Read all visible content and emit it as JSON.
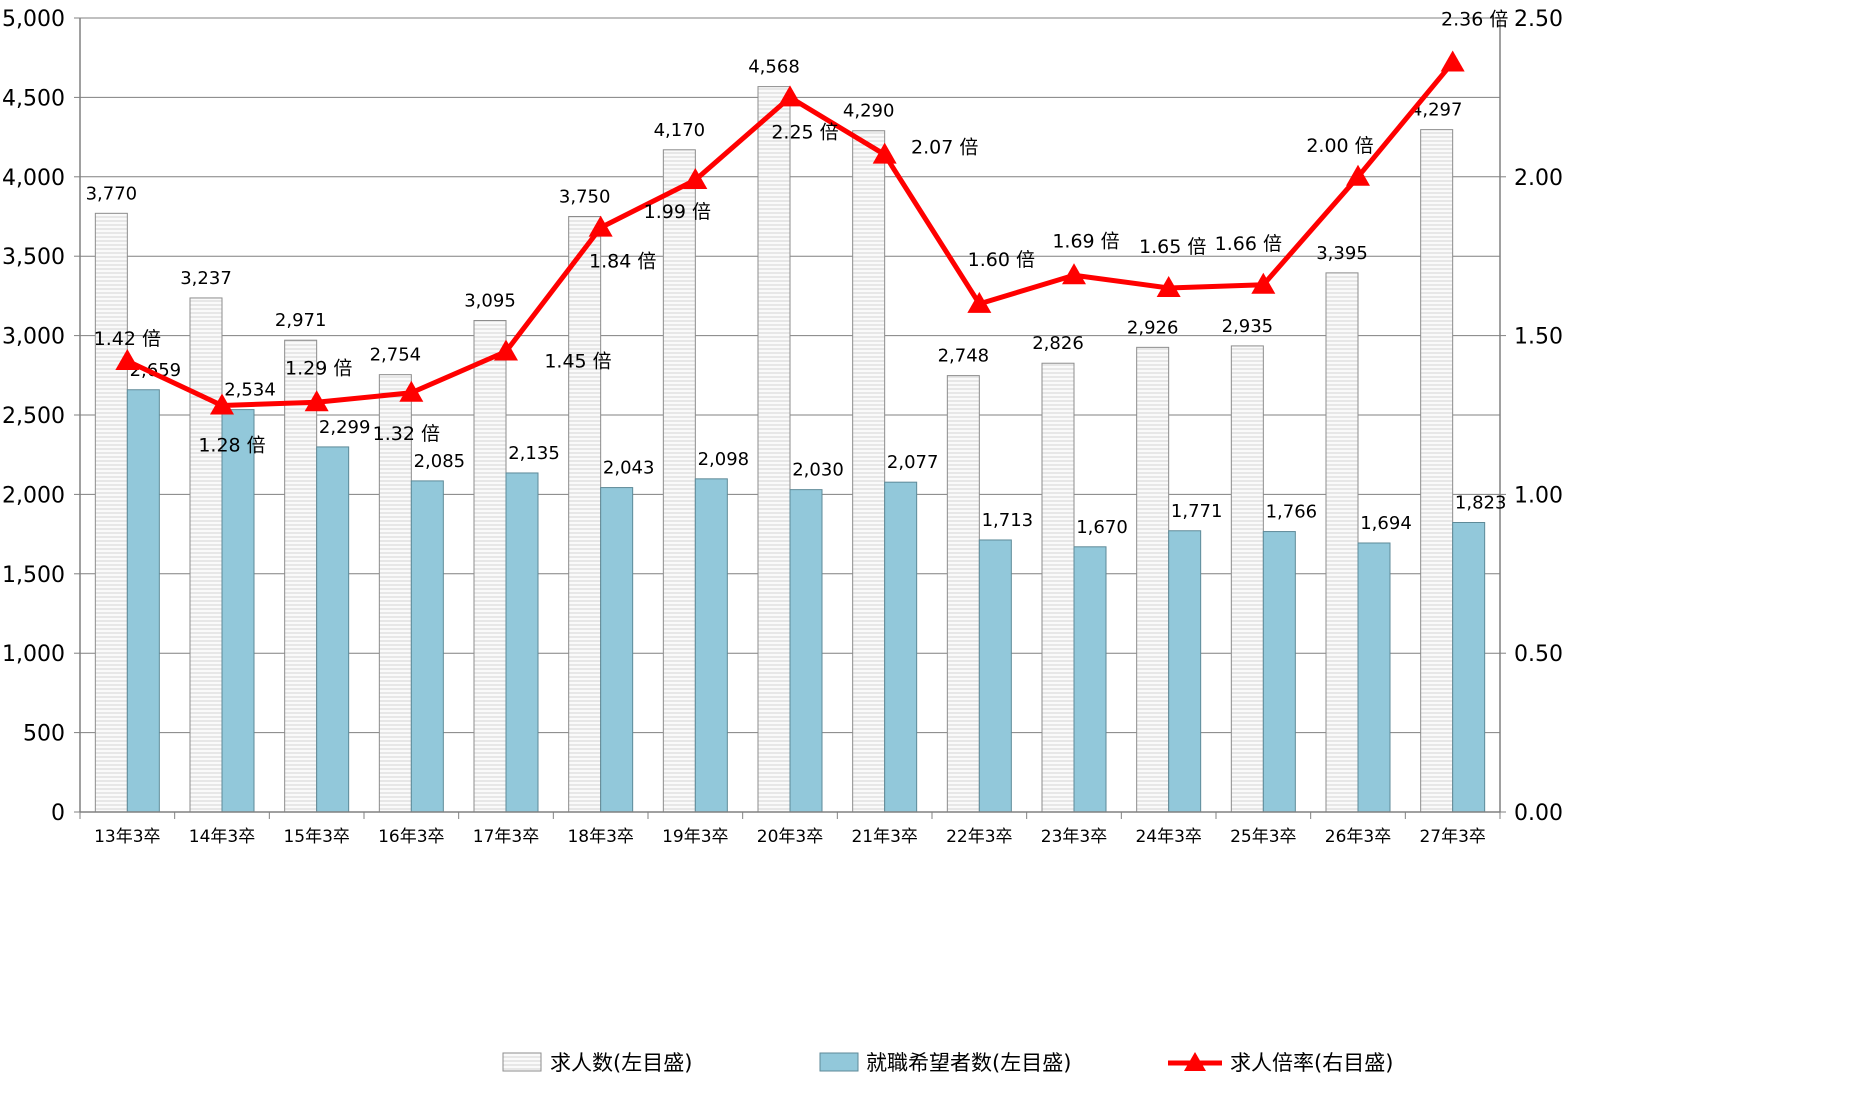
{
  "chart_data": {
    "type": "bar",
    "categories": [
      "13年3卒",
      "14年3卒",
      "15年3卒",
      "16年3卒",
      "17年3卒",
      "18年3卒",
      "19年3卒",
      "20年3卒",
      "21年3卒",
      "22年3卒",
      "23年3卒",
      "24年3卒",
      "25年3卒",
      "26年3卒",
      "27年3卒"
    ],
    "series": [
      {
        "name": "求人数(左目盛)",
        "kind": "bar",
        "axis": "left",
        "values": [
          3770,
          3237,
          2971,
          2754,
          3095,
          3750,
          4170,
          4568,
          4290,
          2748,
          2826,
          2926,
          2935,
          3395,
          4297
        ],
        "labels": [
          "3,770",
          "3,237",
          "2,971",
          "2,754",
          "3,095",
          "3,750",
          "4,170",
          "4,568",
          "4,290",
          "2,748",
          "2,826",
          "2,926",
          "2,935",
          "3,395",
          "4,297"
        ]
      },
      {
        "name": "就職希望者数(左目盛)",
        "kind": "bar",
        "axis": "left",
        "values": [
          2659,
          2534,
          2299,
          2085,
          2135,
          2043,
          2098,
          2030,
          2077,
          1713,
          1670,
          1771,
          1766,
          1694,
          1823
        ],
        "labels": [
          "2,659",
          "2,534",
          "2,299",
          "2,085",
          "2,135",
          "2,043",
          "2,098",
          "2,030",
          "2,077",
          "1,713",
          "1,670",
          "1,771",
          "1,766",
          "1,694",
          "1,823"
        ]
      },
      {
        "name": "求人倍率(右目盛)",
        "kind": "line",
        "axis": "right",
        "values": [
          1.42,
          1.28,
          1.29,
          1.32,
          1.45,
          1.84,
          1.99,
          2.25,
          2.07,
          1.6,
          1.69,
          1.65,
          1.66,
          2.0,
          2.36
        ],
        "labels": [
          "1.42 倍",
          "1.28 倍",
          "1.29 倍",
          "1.32 倍",
          "1.45 倍",
          "1.84 倍",
          "1.99 倍",
          "2.25 倍",
          "2.07 倍",
          "1.60 倍",
          "1.69 倍",
          "1.65 倍",
          "1.66 倍",
          "2.00 倍",
          "2.36 倍"
        ]
      }
    ],
    "left_axis": {
      "ylim": [
        0,
        5000
      ],
      "ticks": [
        "0",
        "500",
        "1,000",
        "1,500",
        "2,000",
        "2,500",
        "3,000",
        "3,500",
        "4,000",
        "4,500",
        "5,000"
      ]
    },
    "right_axis": {
      "ylim": [
        0,
        2.5
      ],
      "ticks": [
        "0.00",
        "0.50",
        "1.00",
        "1.50",
        "2.00",
        "2.50"
      ]
    },
    "grid": true,
    "legend_position": "bottom",
    "colors": {
      "offers_fill": "#f4f4f4",
      "offers_stroke": "#8c8c8c",
      "applicants_fill": "#92c8da",
      "applicants_stroke": "#5e8a98",
      "ratio_line": "#ff0000",
      "grid": "#808080"
    }
  }
}
